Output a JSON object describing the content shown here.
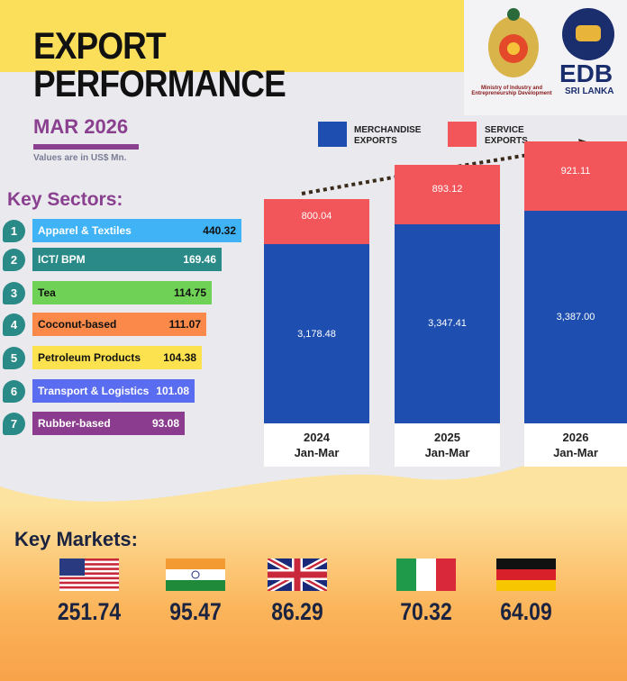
{
  "header": {
    "title_line1": "EXPORT",
    "title_line2": "PERFORMANCE",
    "period": "MAR 2026",
    "units": "Values are in US$ Mn."
  },
  "logos": {
    "ministry": "Ministry of Industry and Entrepreneurship Development",
    "edb": "EDB",
    "edb_sub": "SRI LANKA"
  },
  "colors": {
    "merchandise": "#1e4fb0",
    "service": "#f2555a",
    "accent": "#8a3f8f"
  },
  "sectors": {
    "title": "Key Sectors:",
    "items": [
      {
        "rank": "1",
        "name": "Apparel & Textiles",
        "value": "440.32",
        "color": "#3fb3f5"
      },
      {
        "rank": "2",
        "name": "ICT/ BPM",
        "value": "169.46",
        "color": "#2a8a88"
      },
      {
        "rank": "3",
        "name": "Tea",
        "value": "114.75",
        "color": "#6fd155"
      },
      {
        "rank": "4",
        "name": "Coconut-based",
        "value": "111.07",
        "color": "#fb8a4a"
      },
      {
        "rank": "5",
        "name": "Petroleum Products",
        "value": "104.38",
        "color": "#fde24f"
      },
      {
        "rank": "6",
        "name": "Transport & Logistics",
        "value": "101.08",
        "color": "#5a6cf0"
      },
      {
        "rank": "7",
        "name": "Rubber-based",
        "value": "93.08",
        "color": "#8b3c8e"
      }
    ]
  },
  "chart_data": {
    "type": "bar",
    "stacked": true,
    "categories": [
      "2024 Jan-Mar",
      "2025 Jan-Mar",
      "2026 Jan-Mar"
    ],
    "category_labels": [
      [
        "2024",
        "Jan-Mar"
      ],
      [
        "2025",
        "Jan-Mar"
      ],
      [
        "2026",
        "Jan-Mar"
      ]
    ],
    "series": [
      {
        "name": "MERCHANDISE EXPORTS",
        "values": [
          3178.48,
          3347.41,
          3387.0
        ],
        "labels": [
          "3,178.48",
          "3,347.41",
          "3,387.00"
        ],
        "color": "#1e4fb0"
      },
      {
        "name": "SERVICE EXPORTS",
        "values": [
          800.04,
          893.12,
          921.11
        ],
        "labels": [
          "800.04",
          "893.12",
          "921.11"
        ],
        "color": "#f2555a"
      }
    ],
    "legend": "top",
    "grid": false
  },
  "markets": {
    "title": "Key Markets:",
    "items": [
      {
        "country": "usa-flag",
        "value": "251.74"
      },
      {
        "country": "india-flag",
        "value": "95.47"
      },
      {
        "country": "uk-flag",
        "value": "86.29"
      },
      {
        "country": "italy-flag",
        "value": "70.32"
      },
      {
        "country": "germany-flag",
        "value": "64.09"
      }
    ]
  }
}
